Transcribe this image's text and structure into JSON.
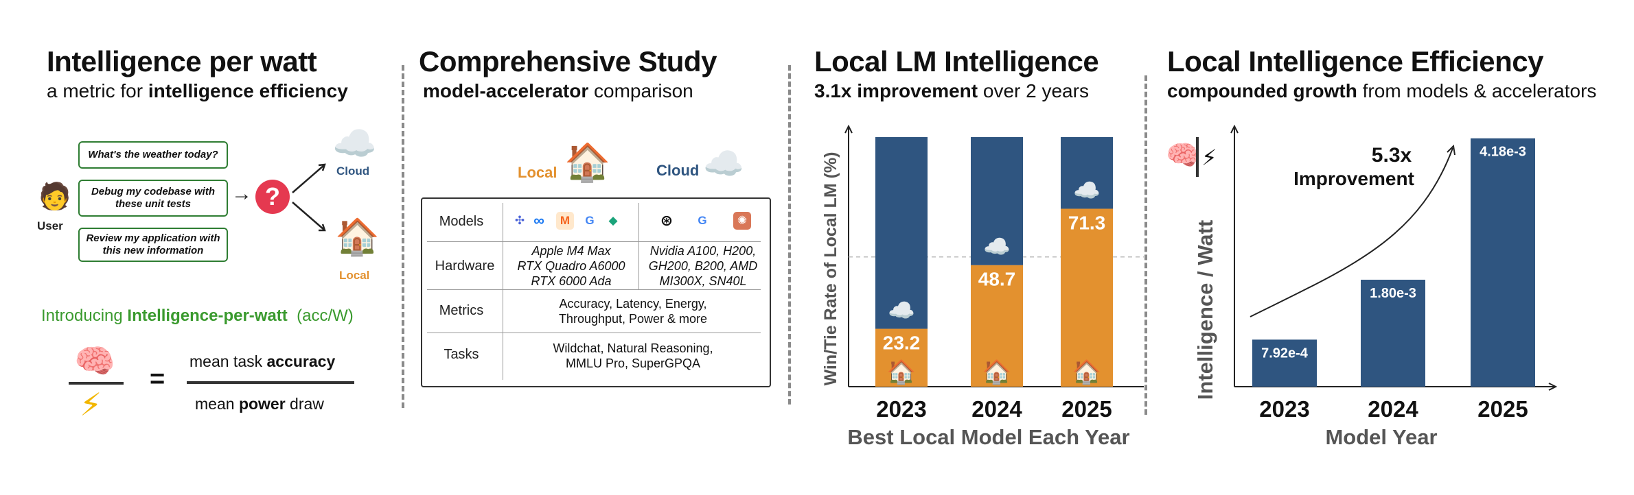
{
  "panel1": {
    "title": "Intelligence per watt",
    "subtitle_pre": "a metric for ",
    "subtitle_bold": "intelligence efficiency",
    "queries": [
      "What's the weather today?",
      "Debug my codebase with these unit tests",
      "Review my application with this new information"
    ],
    "user_label": "User",
    "router_symbol": "?",
    "cloud_label": "Cloud",
    "local_label": "Local",
    "intro_pre": "Introducing ",
    "intro_bold": "Intelligence-per-watt",
    "intro_unit": "(acc/W)",
    "equals": "=",
    "numerator_pre": "mean task ",
    "numerator_bold": "accuracy",
    "denominator_pre": "mean ",
    "denominator_bold": "power",
    "denominator_post": " draw",
    "user_emoji": "🧑",
    "cloud_emoji": "☁️",
    "house_emoji": "🏠",
    "brain_emoji": "🧠",
    "bolt_emoji": "⚡",
    "arrow": "→"
  },
  "panel2": {
    "title": "Comprehensive Study",
    "subtitle_bold": "model-accelerator",
    "subtitle_post": " comparison",
    "local_label": "Local",
    "cloud_label": "Cloud",
    "rows": [
      {
        "label": "Models"
      },
      {
        "label": "Hardware",
        "local": [
          "Apple M4 Max",
          "RTX Quadro A6000",
          "RTX 6000 Ada"
        ],
        "cloud": [
          "Nvidia A100, H200,",
          "GH200, B200, AMD",
          "MI300X, SN40L"
        ]
      },
      {
        "label": "Metrics",
        "value": [
          "Accuracy, Latency, Energy,",
          "Throughput, Power & more"
        ]
      },
      {
        "label": "Tasks",
        "value": [
          "Wildchat, Natural Reasoning,",
          "MMLU Pro, SuperGPQA"
        ]
      }
    ],
    "local_model_logos": [
      "✣",
      "∞",
      "M",
      "G",
      "◆"
    ],
    "cloud_model_logos": [
      "⊛",
      "G",
      "✺"
    ],
    "house_emoji": "🏠",
    "cloud_emoji": "☁️"
  },
  "panel3": {
    "title": "Local LM Intelligence",
    "subtitle_bold": "3.1x improvement",
    "subtitle_post": " over 2 years",
    "house_emoji": "🏠",
    "cloud_emoji": "☁️"
  },
  "panel4": {
    "title": "Local Intelligence Efficiency",
    "subtitle_bold": "compounded growth",
    "subtitle_post": " from models & accelerators",
    "annotation_line1": "5.3x",
    "annotation_line2": "Improvement",
    "brain_emoji": "🧠",
    "bolt_emoji": "⚡"
  },
  "colors": {
    "navy": "#2f5580",
    "orange": "#e3912f",
    "green": "#2e7d32",
    "red": "#e53950",
    "axis_gray": "#555555"
  },
  "chart_data": [
    {
      "type": "bar",
      "title": "Local LM Intelligence",
      "categories": [
        "2023",
        "2024",
        "2025"
      ],
      "series": [
        {
          "name": "Local",
          "values": [
            23.2,
            48.7,
            71.3
          ]
        },
        {
          "name": "Cloud",
          "values": [
            76.8,
            51.3,
            28.7
          ]
        }
      ],
      "stacked": true,
      "xlabel": "Best Local Model Each Year",
      "ylabel": "Win/Tie Rate of Local LM (%)",
      "ylim": [
        0,
        100
      ],
      "reference_line": 52
    },
    {
      "type": "bar",
      "title": "Local Intelligence Efficiency",
      "categories": [
        "2023",
        "2024",
        "2025"
      ],
      "values": [
        0.000792,
        0.0018,
        0.00418
      ],
      "labels": [
        "7.92e-4",
        "1.80e-3",
        "4.18e-3"
      ],
      "xlabel": "Model Year",
      "ylabel": "Intelligence / Watt",
      "ylim": [
        0,
        0.0042
      ]
    }
  ]
}
